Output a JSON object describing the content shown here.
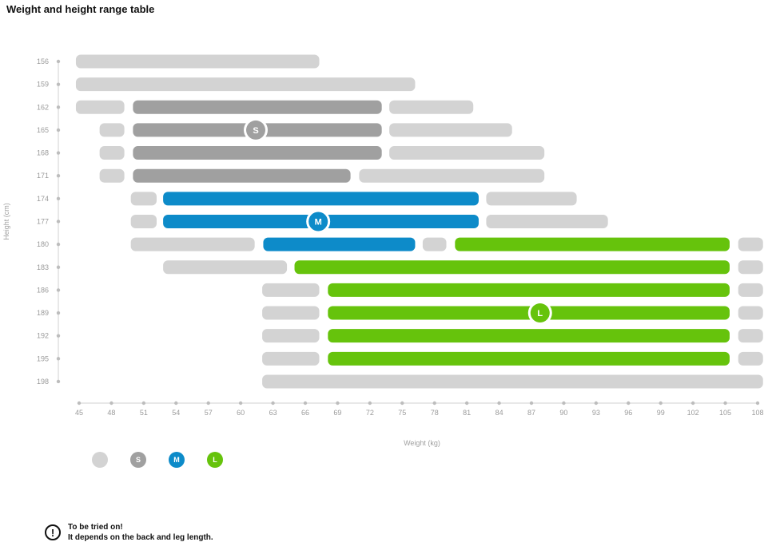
{
  "title": "Weight and height range table",
  "chart_data": {
    "type": "range-bar",
    "title": "Weight and height range table",
    "xlabel": "Weight (kg)",
    "ylabel": "Height (cm)",
    "x_ticks": [
      45,
      48,
      51,
      54,
      57,
      60,
      63,
      66,
      69,
      72,
      75,
      78,
      81,
      84,
      87,
      90,
      93,
      96,
      99,
      102,
      105,
      108
    ],
    "y_ticks": [
      156,
      159,
      162,
      165,
      168,
      171,
      174,
      177,
      180,
      183,
      186,
      189,
      192,
      195,
      198
    ],
    "xlim": [
      45,
      108
    ],
    "colors": {
      "none": "#d3d3d3",
      "S": "#a0a0a0",
      "M": "#0d8bc9",
      "L": "#66c30c"
    },
    "rows": [
      {
        "height": 156,
        "segments": [
          {
            "size": "none",
            "from": 44.7,
            "to": 67.3
          }
        ]
      },
      {
        "height": 159,
        "segments": [
          {
            "size": "none",
            "from": 44.7,
            "to": 76.2
          }
        ]
      },
      {
        "height": 162,
        "segments": [
          {
            "size": "none",
            "from": 44.7,
            "to": 49.2
          },
          {
            "size": "S",
            "from": 50,
            "to": 73.1
          },
          {
            "size": "none",
            "from": 73.8,
            "to": 81.6
          }
        ]
      },
      {
        "height": 165,
        "segments": [
          {
            "size": "none",
            "from": 46.9,
            "to": 49.2
          },
          {
            "size": "S",
            "from": 50,
            "to": 73.1
          },
          {
            "size": "none",
            "from": 73.8,
            "to": 85.2
          }
        ]
      },
      {
        "height": 168,
        "segments": [
          {
            "size": "none",
            "from": 46.9,
            "to": 49.2
          },
          {
            "size": "S",
            "from": 50,
            "to": 73.1
          },
          {
            "size": "none",
            "from": 73.8,
            "to": 88.2
          }
        ]
      },
      {
        "height": 171,
        "segments": [
          {
            "size": "none",
            "from": 46.9,
            "to": 49.2
          },
          {
            "size": "S",
            "from": 50,
            "to": 70.2
          },
          {
            "size": "none",
            "from": 71,
            "to": 88.2
          }
        ]
      },
      {
        "height": 174,
        "segments": [
          {
            "size": "none",
            "from": 49.8,
            "to": 52.2
          },
          {
            "size": "M",
            "from": 52.8,
            "to": 82.1
          },
          {
            "size": "none",
            "from": 82.8,
            "to": 91.2
          }
        ]
      },
      {
        "height": 177,
        "segments": [
          {
            "size": "none",
            "from": 49.8,
            "to": 52.2
          },
          {
            "size": "M",
            "from": 52.8,
            "to": 82.1
          },
          {
            "size": "none",
            "from": 82.8,
            "to": 94.1
          }
        ]
      },
      {
        "height": 180,
        "segments": [
          {
            "size": "none",
            "from": 49.8,
            "to": 61.3
          },
          {
            "size": "M",
            "from": 62.1,
            "to": 76.2
          },
          {
            "size": "none",
            "from": 76.9,
            "to": 79.1
          },
          {
            "size": "L",
            "from": 79.9,
            "to": 105.4
          },
          {
            "size": "none",
            "from": 106.2,
            "to": 108.5
          }
        ]
      },
      {
        "height": 183,
        "segments": [
          {
            "size": "none",
            "from": 52.8,
            "to": 64.3
          },
          {
            "size": "L",
            "from": 65,
            "to": 105.4
          },
          {
            "size": "none",
            "from": 106.2,
            "to": 108.5
          }
        ]
      },
      {
        "height": 186,
        "segments": [
          {
            "size": "none",
            "from": 62,
            "to": 67.3
          },
          {
            "size": "L",
            "from": 68.1,
            "to": 105.4
          },
          {
            "size": "none",
            "from": 106.2,
            "to": 108.5
          }
        ]
      },
      {
        "height": 189,
        "segments": [
          {
            "size": "none",
            "from": 62,
            "to": 67.3
          },
          {
            "size": "L",
            "from": 68.1,
            "to": 105.4
          },
          {
            "size": "none",
            "from": 106.2,
            "to": 108.5
          }
        ]
      },
      {
        "height": 192,
        "segments": [
          {
            "size": "none",
            "from": 62,
            "to": 67.3
          },
          {
            "size": "L",
            "from": 68.1,
            "to": 105.4
          },
          {
            "size": "none",
            "from": 106.2,
            "to": 108.5
          }
        ]
      },
      {
        "height": 195,
        "segments": [
          {
            "size": "none",
            "from": 62,
            "to": 67.3
          },
          {
            "size": "L",
            "from": 68.1,
            "to": 105.4
          },
          {
            "size": "none",
            "from": 106.2,
            "to": 108.5
          }
        ]
      },
      {
        "height": 198,
        "segments": [
          {
            "size": "none",
            "from": 62,
            "to": 108.5
          }
        ]
      }
    ],
    "size_badges": [
      {
        "label": "S",
        "weight": 61.4,
        "height": 165
      },
      {
        "label": "M",
        "weight": 67.2,
        "height": 177
      },
      {
        "label": "L",
        "weight": 87.8,
        "height": 189
      }
    ],
    "legend": [
      {
        "size": "none",
        "label": ""
      },
      {
        "size": "S",
        "label": "S"
      },
      {
        "size": "M",
        "label": "M"
      },
      {
        "size": "L",
        "label": "L"
      }
    ]
  },
  "note": {
    "icon": "exclamation-icon",
    "line1": "To be tried on!",
    "line2": "It depends on the back and leg length."
  }
}
